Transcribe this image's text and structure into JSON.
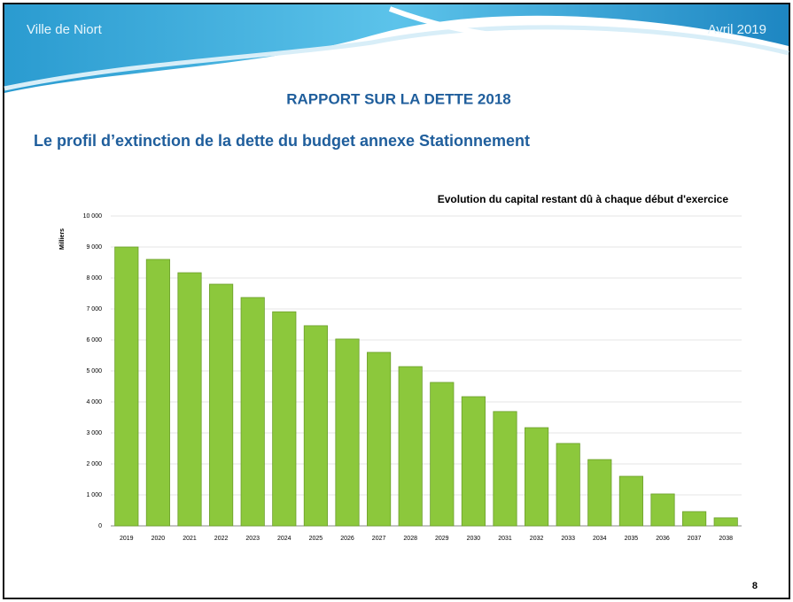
{
  "header": {
    "left": "Ville de Niort",
    "right": "Avril 2019"
  },
  "report_title": "RAPPORT SUR LA DETTE 2018",
  "section_title": "Le profil d’extinction de la dette du budget annexe Stationnement",
  "page_number": "8",
  "chart_data": {
    "type": "bar",
    "title": "Evolution du capital restant dû à chaque début d'exercice",
    "y_label": "Milliers",
    "categories": [
      "2019",
      "2020",
      "2021",
      "2022",
      "2023",
      "2024",
      "2025",
      "2026",
      "2027",
      "2028",
      "2029",
      "2030",
      "2031",
      "2032",
      "2033",
      "2034",
      "2035",
      "2036",
      "2037",
      "2038"
    ],
    "values": [
      9000,
      8600,
      8170,
      7800,
      7370,
      6910,
      6460,
      6030,
      5600,
      5140,
      4630,
      4170,
      3690,
      3170,
      2660,
      2140,
      1600,
      1030,
      460,
      260
    ],
    "color": "#8cc83c",
    "ylim": [
      0,
      10000
    ],
    "yticks": [
      0,
      {
        "value": 1000,
        "label": "1 000"
      },
      {
        "value": 2000,
        "label": "2 000"
      },
      {
        "value": 3000,
        "label": "3 000"
      },
      {
        "value": 4000,
        "label": "4 000"
      },
      {
        "value": 5000,
        "label": "5 000"
      },
      {
        "value": 6000,
        "label": "6 000"
      },
      {
        "value": 7000,
        "label": "7 000"
      },
      {
        "value": 8000,
        "label": "8 000"
      },
      {
        "value": 9000,
        "label": "9 000"
      },
      {
        "value": 10000,
        "label": "10 000"
      }
    ],
    "grid": true
  }
}
